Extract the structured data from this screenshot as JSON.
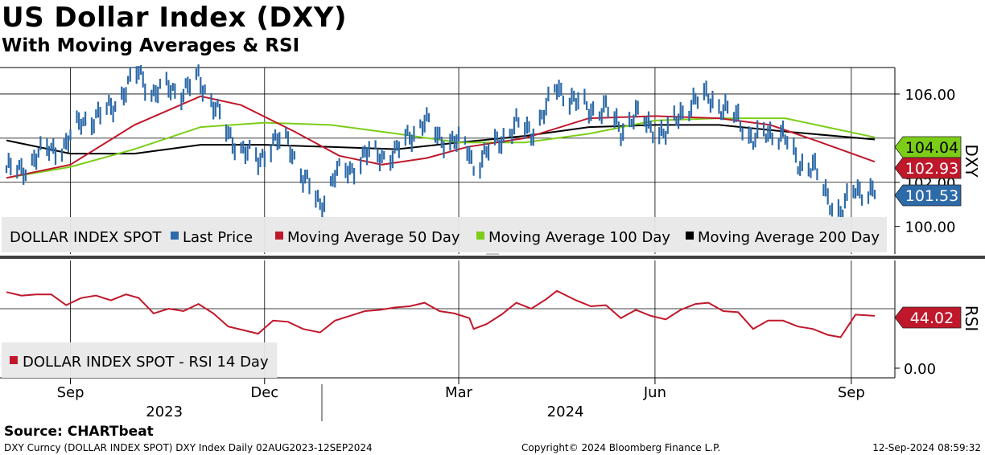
{
  "title": "US Dollar Index (DXY)",
  "subtitle": "With Moving Averages & RSI",
  "source": "Source:  CHARTbeat",
  "footer": {
    "left": "DXY Curncy (DOLLAR INDEX SPOT) DXY Index  Daily 02AUG2023-12SEP2024",
    "center": "Copyright© 2024 Bloomberg Finance L.P.",
    "right": "12-Sep-2024 08:59:32"
  },
  "colors": {
    "last_price": "#2d6aa8",
    "ma50": "#c0182b",
    "ma100": "#7ccd18",
    "ma200": "#000000",
    "rsi": "#c0182b"
  },
  "chart_data": [
    {
      "type": "line",
      "panel": "price",
      "ylabel": "DXY",
      "ylim": [
        98.75,
        107.2
      ],
      "yticks": [
        100.0,
        102.0,
        106.0
      ],
      "ytick_labels": [
        "100.00",
        "102.00",
        "106.00"
      ],
      "x_range": [
        "2023-08-02",
        "2024-09-12"
      ],
      "x_month_ticks": [
        {
          "label": "Sep",
          "date": "2023-09-01"
        },
        {
          "label": "Dec",
          "date": "2023-12-01"
        },
        {
          "label": "Mar",
          "date": "2024-03-01"
        },
        {
          "label": "Jun",
          "date": "2024-06-01"
        },
        {
          "label": "Sep",
          "date": "2024-09-01"
        }
      ],
      "x_year_labels": [
        {
          "label": "2023",
          "date": "2023-10-15"
        },
        {
          "label": "2024",
          "date": "2024-04-20"
        }
      ],
      "grid": true,
      "legend": {
        "placement": "bottom",
        "title": "DOLLAR INDEX SPOT",
        "entries": [
          "Last Price",
          "Moving Average 50 Day",
          "Moving Average 100 Day",
          "Moving Average 200 Day"
        ]
      },
      "last_value_tags": [
        {
          "label": "104.04",
          "series": "Moving Average 100 Day"
        },
        {
          "label": "102.93",
          "series": "Moving Average 50 Day"
        },
        {
          "label": "101.53",
          "series": "Last Price"
        }
      ],
      "price_points": [
        [
          "2023-08-02",
          102.6
        ],
        [
          "2023-08-09",
          102.5
        ],
        [
          "2023-08-16",
          103.2
        ],
        [
          "2023-08-23",
          103.5
        ],
        [
          "2023-08-30",
          103.7
        ],
        [
          "2023-09-06",
          104.8
        ],
        [
          "2023-09-13",
          104.9
        ],
        [
          "2023-09-20",
          105.4
        ],
        [
          "2023-09-27",
          106.2
        ],
        [
          "2023-10-03",
          107.0
        ],
        [
          "2023-10-10",
          106.0
        ],
        [
          "2023-10-17",
          106.3
        ],
        [
          "2023-10-24",
          106.1
        ],
        [
          "2023-10-31",
          106.7
        ],
        [
          "2023-11-07",
          105.6
        ],
        [
          "2023-11-14",
          104.1
        ],
        [
          "2023-11-21",
          103.5
        ],
        [
          "2023-11-28",
          102.9
        ],
        [
          "2023-12-05",
          103.9
        ],
        [
          "2023-12-12",
          103.8
        ],
        [
          "2023-12-19",
          102.3
        ],
        [
          "2023-12-27",
          100.9
        ],
        [
          "2024-01-03",
          102.4
        ],
        [
          "2024-01-10",
          102.5
        ],
        [
          "2024-01-17",
          103.3
        ],
        [
          "2024-01-24",
          103.2
        ],
        [
          "2024-01-31",
          103.3
        ],
        [
          "2024-02-07",
          104.1
        ],
        [
          "2024-02-14",
          104.8
        ],
        [
          "2024-02-21",
          104.0
        ],
        [
          "2024-02-28",
          103.9
        ],
        [
          "2024-03-06",
          103.4
        ],
        [
          "2024-03-08",
          102.7
        ],
        [
          "2024-03-14",
          103.3
        ],
        [
          "2024-03-21",
          104.0
        ],
        [
          "2024-03-28",
          104.6
        ],
        [
          "2024-04-04",
          104.3
        ],
        [
          "2024-04-11",
          105.3
        ],
        [
          "2024-04-16",
          106.3
        ],
        [
          "2024-04-25",
          105.6
        ],
        [
          "2024-05-02",
          105.3
        ],
        [
          "2024-05-09",
          105.3
        ],
        [
          "2024-05-16",
          104.4
        ],
        [
          "2024-05-23",
          105.0
        ],
        [
          "2024-05-30",
          104.6
        ],
        [
          "2024-06-06",
          104.1
        ],
        [
          "2024-06-13",
          105.2
        ],
        [
          "2024-06-20",
          105.6
        ],
        [
          "2024-06-26",
          106.0
        ],
        [
          "2024-07-03",
          105.2
        ],
        [
          "2024-07-10",
          105.0
        ],
        [
          "2024-07-17",
          103.8
        ],
        [
          "2024-07-24",
          104.3
        ],
        [
          "2024-07-31",
          104.1
        ],
        [
          "2024-08-07",
          102.9
        ],
        [
          "2024-08-14",
          102.7
        ],
        [
          "2024-08-21",
          101.3
        ],
        [
          "2024-08-27",
          100.6
        ],
        [
          "2024-09-03",
          101.7
        ],
        [
          "2024-09-12",
          101.53
        ]
      ],
      "ma50_points": [
        [
          "2023-08-02",
          102.2
        ],
        [
          "2023-09-01",
          102.8
        ],
        [
          "2023-10-01",
          104.6
        ],
        [
          "2023-11-01",
          105.9
        ],
        [
          "2023-11-20",
          105.5
        ],
        [
          "2023-12-15",
          104.3
        ],
        [
          "2024-01-05",
          103.2
        ],
        [
          "2024-01-25",
          102.8
        ],
        [
          "2024-02-15",
          103.1
        ],
        [
          "2024-03-05",
          103.6
        ],
        [
          "2024-04-01",
          104.0
        ],
        [
          "2024-05-01",
          104.9
        ],
        [
          "2024-06-01",
          105.0
        ],
        [
          "2024-07-01",
          104.9
        ],
        [
          "2024-07-25",
          104.6
        ],
        [
          "2024-08-15",
          103.9
        ],
        [
          "2024-09-12",
          102.93
        ]
      ],
      "ma100_points": [
        [
          "2023-08-02",
          102.2
        ],
        [
          "2023-09-01",
          102.7
        ],
        [
          "2023-10-01",
          103.5
        ],
        [
          "2023-11-01",
          104.5
        ],
        [
          "2023-12-01",
          104.7
        ],
        [
          "2024-01-01",
          104.6
        ],
        [
          "2024-02-01",
          104.2
        ],
        [
          "2024-03-01",
          103.8
        ],
        [
          "2024-04-01",
          103.8
        ],
        [
          "2024-05-01",
          104.2
        ],
        [
          "2024-06-01",
          104.8
        ],
        [
          "2024-07-01",
          104.9
        ],
        [
          "2024-08-01",
          104.9
        ],
        [
          "2024-09-12",
          104.04
        ]
      ],
      "ma200_points": [
        [
          "2023-08-02",
          103.9
        ],
        [
          "2023-09-01",
          103.3
        ],
        [
          "2023-10-01",
          103.3
        ],
        [
          "2023-11-01",
          103.7
        ],
        [
          "2023-12-01",
          103.7
        ],
        [
          "2024-01-01",
          103.6
        ],
        [
          "2024-02-01",
          103.5
        ],
        [
          "2024-03-01",
          103.8
        ],
        [
          "2024-04-01",
          104.1
        ],
        [
          "2024-05-01",
          104.5
        ],
        [
          "2024-06-01",
          104.6
        ],
        [
          "2024-07-01",
          104.6
        ],
        [
          "2024-08-01",
          104.3
        ],
        [
          "2024-09-12",
          103.94
        ]
      ]
    },
    {
      "type": "line",
      "panel": "rsi",
      "ylabel": "RSI",
      "ylim": [
        0,
        50
      ],
      "yticks": [
        0
      ],
      "ytick_labels": [
        "0.00"
      ],
      "grid": true,
      "legend": {
        "placement": "bottom-left",
        "entries": [
          "DOLLAR INDEX SPOT - RSI 14 Day"
        ]
      },
      "last_value_tags": [
        {
          "label": "44.02",
          "series": "DOLLAR INDEX SPOT - RSI 14 Day"
        }
      ],
      "rsi_points": [
        [
          "2023-08-02",
          64
        ],
        [
          "2023-08-09",
          61
        ],
        [
          "2023-08-16",
          62
        ],
        [
          "2023-08-23",
          62
        ],
        [
          "2023-08-30",
          53
        ],
        [
          "2023-09-06",
          59
        ],
        [
          "2023-09-13",
          61
        ],
        [
          "2023-09-20",
          57
        ],
        [
          "2023-09-27",
          62
        ],
        [
          "2023-10-03",
          59
        ],
        [
          "2023-10-10",
          46
        ],
        [
          "2023-10-17",
          50
        ],
        [
          "2023-10-24",
          48
        ],
        [
          "2023-10-31",
          54
        ],
        [
          "2023-11-07",
          46
        ],
        [
          "2023-11-14",
          35
        ],
        [
          "2023-11-21",
          32
        ],
        [
          "2023-11-28",
          29
        ],
        [
          "2023-12-05",
          40
        ],
        [
          "2023-12-12",
          39
        ],
        [
          "2023-12-19",
          33
        ],
        [
          "2023-12-27",
          30
        ],
        [
          "2024-01-03",
          40
        ],
        [
          "2024-01-10",
          44
        ],
        [
          "2024-01-17",
          48
        ],
        [
          "2024-01-24",
          49
        ],
        [
          "2024-01-31",
          51
        ],
        [
          "2024-02-07",
          52
        ],
        [
          "2024-02-14",
          55
        ],
        [
          "2024-02-21",
          48
        ],
        [
          "2024-02-28",
          46
        ],
        [
          "2024-03-06",
          42
        ],
        [
          "2024-03-08",
          33
        ],
        [
          "2024-03-14",
          37
        ],
        [
          "2024-03-21",
          45
        ],
        [
          "2024-03-28",
          55
        ],
        [
          "2024-04-04",
          50
        ],
        [
          "2024-04-11",
          58
        ],
        [
          "2024-04-16",
          65
        ],
        [
          "2024-04-25",
          57
        ],
        [
          "2024-05-02",
          52
        ],
        [
          "2024-05-09",
          53
        ],
        [
          "2024-05-16",
          42
        ],
        [
          "2024-05-23",
          49
        ],
        [
          "2024-05-30",
          44
        ],
        [
          "2024-06-06",
          41
        ],
        [
          "2024-06-13",
          49
        ],
        [
          "2024-06-20",
          54
        ],
        [
          "2024-06-26",
          55
        ],
        [
          "2024-07-03",
          48
        ],
        [
          "2024-07-10",
          47
        ],
        [
          "2024-07-17",
          33
        ],
        [
          "2024-07-24",
          40
        ],
        [
          "2024-07-31",
          40
        ],
        [
          "2024-08-07",
          35
        ],
        [
          "2024-08-14",
          33
        ],
        [
          "2024-08-21",
          28
        ],
        [
          "2024-08-27",
          26
        ],
        [
          "2024-09-03",
          45
        ],
        [
          "2024-09-12",
          44.02
        ]
      ]
    }
  ]
}
